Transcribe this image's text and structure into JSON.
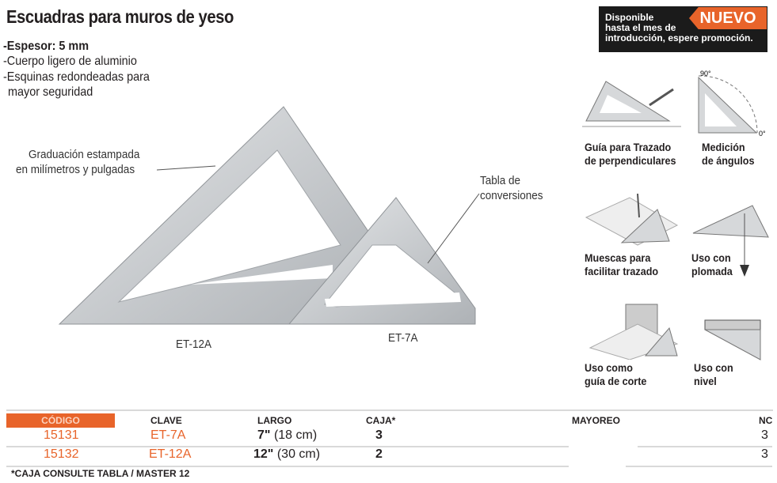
{
  "title": "Escuadras para muros de yeso",
  "features": [
    "-Espesor: 5 mm",
    "-Cuerpo ligero de aluminio",
    "-Esquinas redondeadas para",
    "mayor seguridad"
  ],
  "callouts": {
    "graduacion": [
      "Graduación estampada",
      "en milímetros y pulgadas"
    ],
    "tabla": [
      "Tabla de",
      "conversiones"
    ]
  },
  "models": {
    "large": "ET-12A",
    "small": "ET-7A"
  },
  "promo": {
    "text": [
      "Disponible",
      "hasta el mes de",
      "introducción, espere promoción."
    ],
    "badge": "NUEVO"
  },
  "uses": [
    {
      "icon": "perpendicular-guide-icon",
      "label": [
        "Guía para Trazado",
        "de perpendiculares"
      ]
    },
    {
      "icon": "angle-measure-icon",
      "label": [
        "Medición",
        "de ángulos"
      ],
      "marks": [
        "90°",
        "0°"
      ]
    },
    {
      "icon": "notch-marking-icon",
      "label": [
        "Muescas para",
        "facilitar trazado"
      ]
    },
    {
      "icon": "plumb-bob-icon",
      "label": [
        "Uso con",
        "plomada"
      ]
    },
    {
      "icon": "saw-guide-icon",
      "label": [
        "Uso como",
        "guía de corte"
      ]
    },
    {
      "icon": "level-icon",
      "label": [
        "Uso con",
        "nivel"
      ]
    }
  ],
  "table": {
    "headers": [
      "CÓDIGO",
      "CLAVE",
      "LARGO",
      "CAJA*",
      "MAYOREO",
      "NC"
    ],
    "rows": [
      {
        "codigo": "15131",
        "clave": "ET-7A",
        "largo_in": "7\"",
        "largo_cm": "(18 cm)",
        "caja": "3",
        "nc": "3"
      },
      {
        "codigo": "15132",
        "clave": "ET-12A",
        "largo_in": "12\"",
        "largo_cm": "(30 cm)",
        "caja": "2",
        "nc": "3"
      }
    ],
    "footnote": "*CAJA CONSULTE TABLA / MASTER 12"
  },
  "colors": {
    "accent": "#e8642a",
    "dark": "#1b1b1b",
    "aluminum": "#c9ccd0"
  }
}
